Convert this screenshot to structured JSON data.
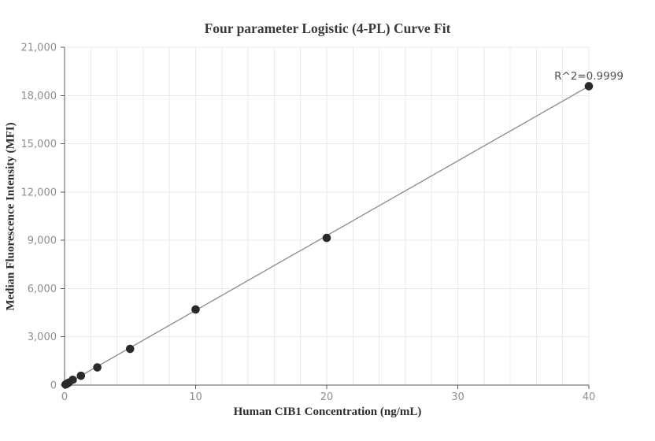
{
  "chart_data": {
    "type": "scatter",
    "title": "Four parameter Logistic (4-PL) Curve Fit",
    "xlabel": "Human CIB1 Concentration (ng/mL)",
    "ylabel": "Median Fluorescence Intensity (MFI)",
    "annotation": "R^2=0.9999",
    "x": [
      0.078,
      0.156,
      0.313,
      0.625,
      1.25,
      2.5,
      5,
      10,
      20,
      40
    ],
    "y": [
      35,
      70,
      150,
      330,
      580,
      1100,
      2250,
      4700,
      9150,
      18580
    ],
    "fit_line": {
      "x": [
        0,
        40
      ],
      "y": [
        0,
        18580
      ]
    },
    "xlim": [
      0,
      40
    ],
    "ylim": [
      0,
      21000
    ],
    "x_ticks": [
      0,
      10,
      20,
      30,
      40
    ],
    "y_ticks": [
      0,
      3000,
      6000,
      9000,
      12000,
      15000,
      18000,
      21000
    ],
    "x_grid_step": 2,
    "grid": true,
    "legend": false,
    "colors": {
      "point": "#2a2a2a",
      "fit_line": "#8a8a8a",
      "axis": "#5a5a5a",
      "grid": "#e6eaf2",
      "tick_label": "#8f8f8f",
      "title_text": "#3a3a3a",
      "background": "#ffffff"
    }
  }
}
